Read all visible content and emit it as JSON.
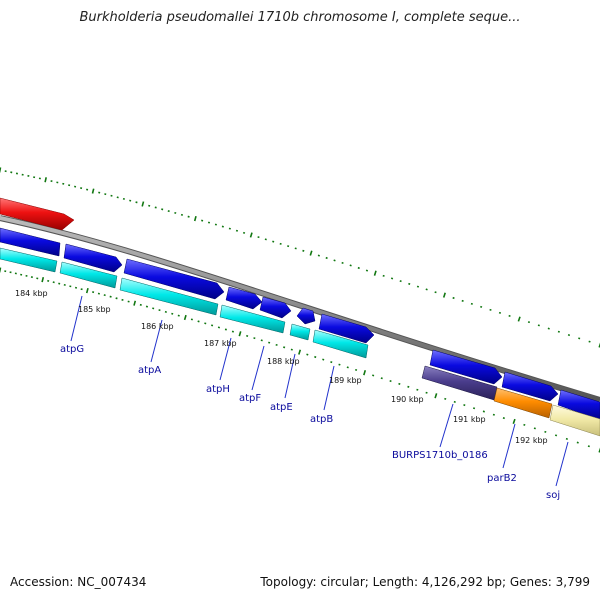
{
  "title": "Burkholderia pseudomallei 1710b chromosome I, complete seque...",
  "footer": {
    "accession": "Accession: NC_007434",
    "topology": "Topology: circular; Length: 4,126,292 bp; Genes: 3,799"
  },
  "colors": {
    "backbone": "#8a8a8a",
    "cds_forward": "#0a0ae0",
    "cds_reverse": "#00e8e8",
    "highlight_red": "#ee1111",
    "gene_dark": "#4a3d8c",
    "gene_orange": "#ff8c00",
    "gene_cream": "#f2eaa8",
    "tick": "#117711",
    "label_line": "#2233cc"
  },
  "tick_labels": [
    "184 kbp",
    "185 kbp",
    "186 kbp",
    "187 kbp",
    "188 kbp",
    "189 kbp",
    "190 kbp",
    "191 kbp",
    "192 kbp"
  ],
  "gene_labels": [
    "atpG",
    "atpA",
    "atpH",
    "atpF",
    "atpE",
    "atpB",
    "BURPS1710b_0186",
    "parB2",
    "soj"
  ]
}
